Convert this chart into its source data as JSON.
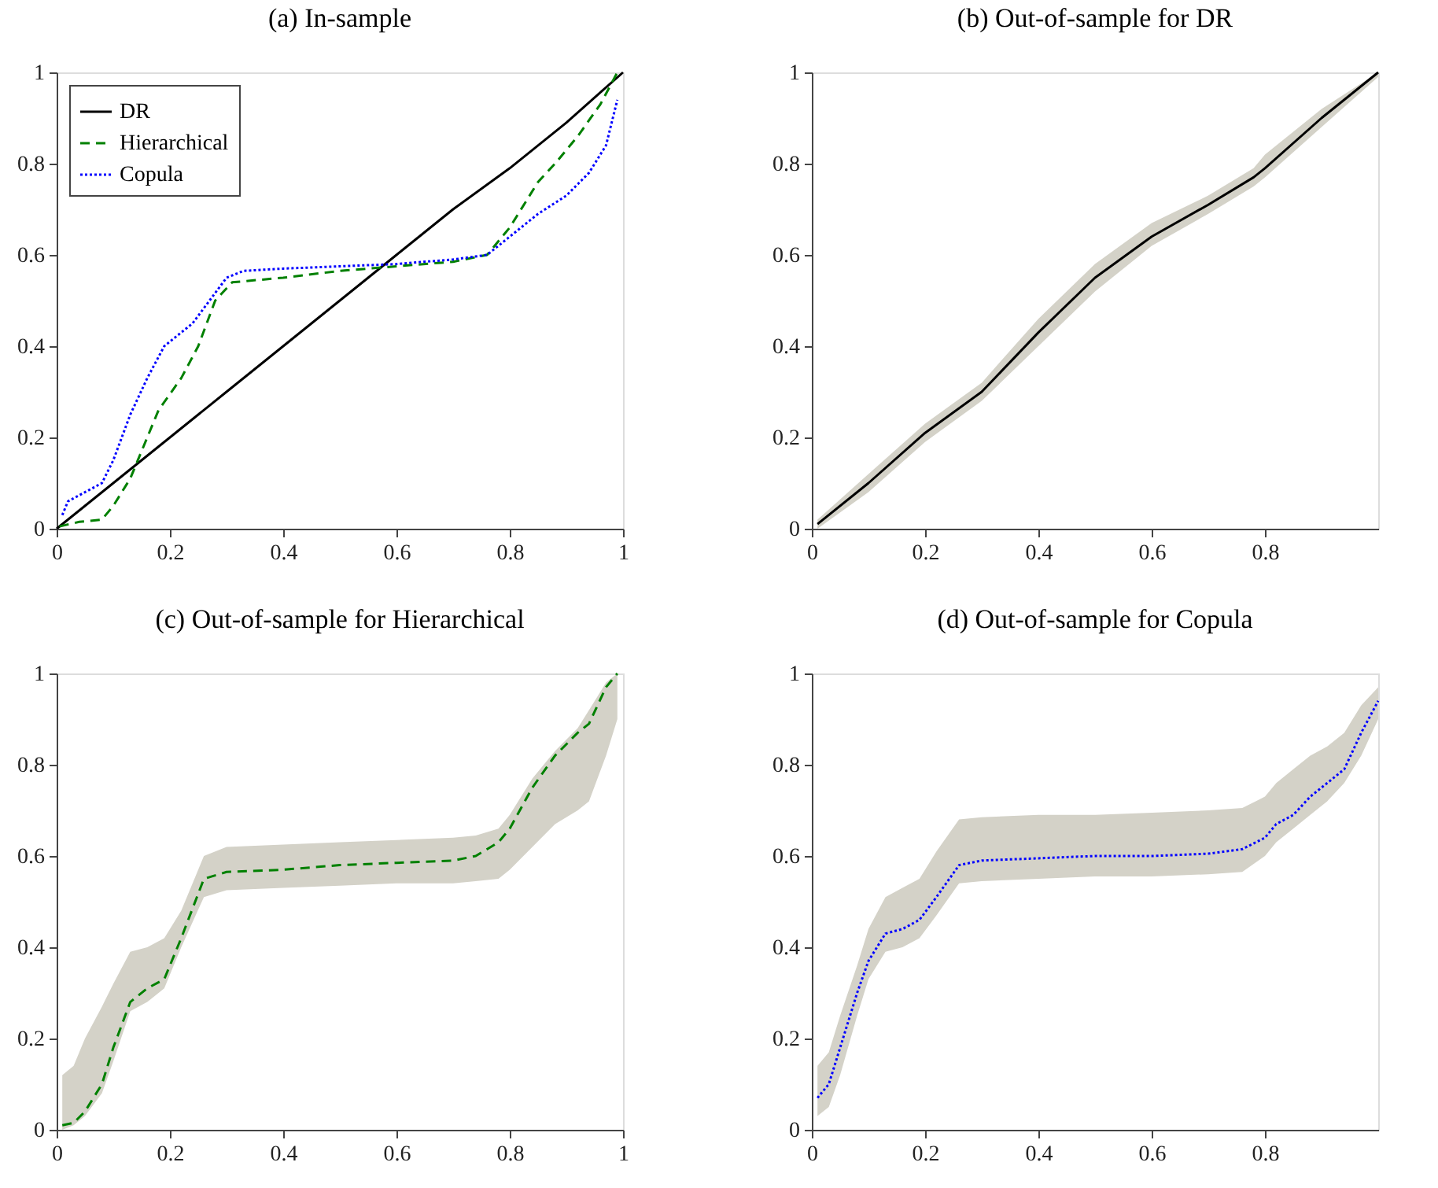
{
  "chart_data": [
    {
      "type": "line",
      "title": "(a) In-sample",
      "xlim": [
        0,
        1
      ],
      "ylim": [
        0,
        1
      ],
      "xticks": [
        0,
        0.2,
        0.4,
        0.6,
        0.8,
        1
      ],
      "yticks": [
        0,
        0.2,
        0.4,
        0.6,
        0.8,
        1
      ],
      "grid": false,
      "legend": "top left",
      "series": [
        {
          "name": "DR",
          "color": "#000000",
          "line_style": "solid",
          "x": [
            0,
            0.1,
            0.2,
            0.3,
            0.4,
            0.5,
            0.6,
            0.7,
            0.8,
            0.9,
            1
          ],
          "values": [
            0,
            0.1,
            0.2,
            0.3,
            0.4,
            0.5,
            0.6,
            0.7,
            0.79,
            0.89,
            1
          ]
        },
        {
          "name": "Hierarchical",
          "color": "#008000",
          "line_style": "dashed",
          "x": [
            0.005,
            0.04,
            0.08,
            0.1,
            0.13,
            0.15,
            0.18,
            0.22,
            0.25,
            0.28,
            0.31,
            0.4,
            0.5,
            0.6,
            0.7,
            0.76,
            0.8,
            0.85,
            0.88,
            0.92,
            0.96,
            0.99
          ],
          "values": [
            0.005,
            0.015,
            0.02,
            0.05,
            0.11,
            0.17,
            0.26,
            0.33,
            0.4,
            0.5,
            0.54,
            0.55,
            0.565,
            0.575,
            0.585,
            0.6,
            0.66,
            0.76,
            0.8,
            0.86,
            0.93,
            1.0
          ]
        },
        {
          "name": "Copula",
          "color": "#0000ff",
          "line_style": "dotted",
          "x": [
            0.01,
            0.02,
            0.05,
            0.08,
            0.1,
            0.13,
            0.16,
            0.19,
            0.21,
            0.24,
            0.27,
            0.3,
            0.33,
            0.4,
            0.5,
            0.6,
            0.7,
            0.76,
            0.8,
            0.85,
            0.9,
            0.94,
            0.97,
            0.99
          ],
          "values": [
            0.03,
            0.06,
            0.08,
            0.1,
            0.15,
            0.25,
            0.33,
            0.4,
            0.42,
            0.45,
            0.5,
            0.55,
            0.565,
            0.57,
            0.575,
            0.58,
            0.59,
            0.6,
            0.64,
            0.69,
            0.73,
            0.78,
            0.84,
            0.94
          ]
        }
      ]
    },
    {
      "type": "line",
      "title": "(b) Out-of-sample for DR",
      "xlim": [
        0,
        1
      ],
      "ylim": [
        0,
        1
      ],
      "xticks": [
        0,
        0.2,
        0.4,
        0.6,
        0.8
      ],
      "yticks": [
        0,
        0.2,
        0.4,
        0.6,
        0.8,
        1
      ],
      "grid": false,
      "series": [
        {
          "color": "#000000",
          "line_style": "solid",
          "x": [
            0.01,
            0.1,
            0.2,
            0.3,
            0.4,
            0.5,
            0.6,
            0.7,
            0.78,
            0.8,
            0.9,
            1.0
          ],
          "values": [
            0.01,
            0.1,
            0.21,
            0.3,
            0.43,
            0.55,
            0.64,
            0.71,
            0.77,
            0.79,
            0.9,
            1.0
          ],
          "lower": [
            0.0,
            0.08,
            0.19,
            0.28,
            0.4,
            0.52,
            0.62,
            0.69,
            0.75,
            0.77,
            0.88,
            0.99
          ],
          "upper": [
            0.02,
            0.12,
            0.23,
            0.32,
            0.46,
            0.58,
            0.67,
            0.73,
            0.79,
            0.82,
            0.92,
            1.0
          ]
        }
      ]
    },
    {
      "type": "line",
      "title": "(c) Out-of-sample for Hierarchical",
      "xlim": [
        0,
        1
      ],
      "ylim": [
        0,
        1
      ],
      "xticks": [
        0,
        0.2,
        0.4,
        0.6,
        0.8,
        1
      ],
      "yticks": [
        0,
        0.2,
        0.4,
        0.6,
        0.8,
        1
      ],
      "grid": false,
      "series": [
        {
          "color": "#008000",
          "line_style": "dashed",
          "x": [
            0.01,
            0.03,
            0.05,
            0.08,
            0.1,
            0.13,
            0.16,
            0.19,
            0.22,
            0.26,
            0.3,
            0.4,
            0.5,
            0.6,
            0.7,
            0.74,
            0.78,
            0.8,
            0.84,
            0.88,
            0.92,
            0.94,
            0.97,
            0.99
          ],
          "values": [
            0.01,
            0.015,
            0.04,
            0.1,
            0.18,
            0.28,
            0.31,
            0.33,
            0.42,
            0.55,
            0.565,
            0.57,
            0.58,
            0.585,
            0.59,
            0.6,
            0.63,
            0.66,
            0.75,
            0.82,
            0.87,
            0.89,
            0.97,
            1.0
          ],
          "lower": [
            0.0,
            0.01,
            0.03,
            0.08,
            0.15,
            0.26,
            0.28,
            0.31,
            0.4,
            0.51,
            0.525,
            0.53,
            0.535,
            0.54,
            0.54,
            0.545,
            0.55,
            0.57,
            0.62,
            0.67,
            0.7,
            0.72,
            0.82,
            0.9
          ],
          "upper": [
            0.12,
            0.14,
            0.2,
            0.27,
            0.32,
            0.39,
            0.4,
            0.42,
            0.48,
            0.6,
            0.62,
            0.625,
            0.63,
            0.635,
            0.64,
            0.645,
            0.66,
            0.69,
            0.77,
            0.83,
            0.88,
            0.92,
            0.98,
            1.0
          ]
        }
      ]
    },
    {
      "type": "line",
      "title": "(d) Out-of-sample for Copula",
      "xlim": [
        0,
        1
      ],
      "ylim": [
        0,
        1
      ],
      "xticks": [
        0,
        0.2,
        0.4,
        0.6,
        0.8
      ],
      "yticks": [
        0,
        0.2,
        0.4,
        0.6,
        0.8,
        1
      ],
      "grid": false,
      "series": [
        {
          "color": "#0000ff",
          "line_style": "dotted",
          "x": [
            0.01,
            0.03,
            0.05,
            0.08,
            0.1,
            0.13,
            0.16,
            0.19,
            0.22,
            0.26,
            0.3,
            0.4,
            0.5,
            0.6,
            0.7,
            0.76,
            0.8,
            0.82,
            0.85,
            0.88,
            0.91,
            0.94,
            0.97,
            1.0
          ],
          "values": [
            0.07,
            0.1,
            0.18,
            0.3,
            0.37,
            0.43,
            0.44,
            0.46,
            0.51,
            0.58,
            0.59,
            0.595,
            0.6,
            0.6,
            0.605,
            0.615,
            0.64,
            0.67,
            0.69,
            0.73,
            0.76,
            0.79,
            0.87,
            0.94
          ],
          "lower": [
            0.03,
            0.05,
            0.12,
            0.25,
            0.33,
            0.39,
            0.4,
            0.42,
            0.47,
            0.54,
            0.545,
            0.55,
            0.555,
            0.555,
            0.56,
            0.565,
            0.6,
            0.63,
            0.66,
            0.69,
            0.72,
            0.76,
            0.82,
            0.9
          ],
          "upper": [
            0.14,
            0.17,
            0.25,
            0.36,
            0.44,
            0.51,
            0.53,
            0.55,
            0.61,
            0.68,
            0.685,
            0.69,
            0.69,
            0.695,
            0.7,
            0.705,
            0.73,
            0.76,
            0.79,
            0.82,
            0.84,
            0.87,
            0.93,
            0.97
          ]
        }
      ]
    }
  ]
}
